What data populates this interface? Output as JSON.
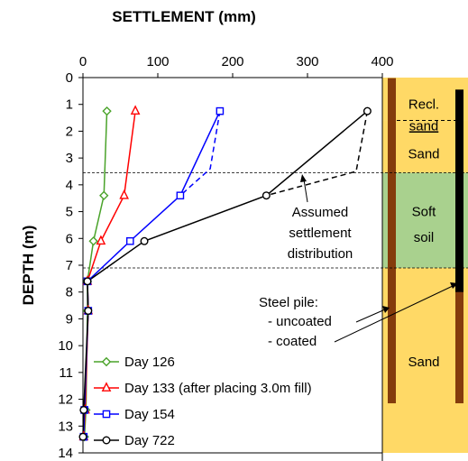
{
  "chart_data": {
    "type": "line",
    "title": "",
    "xlabel": "SETTLEMENT (mm)",
    "ylabel": "DEPTH (m)",
    "xlim": [
      0,
      400
    ],
    "ylim": [
      0,
      14
    ],
    "x_ticks": [
      "0",
      "100",
      "200",
      "300",
      "400"
    ],
    "y_ticks": [
      "0",
      "1",
      "2",
      "3",
      "4",
      "5",
      "6",
      "7",
      "8",
      "9",
      "10",
      "11",
      "12",
      "13",
      "14"
    ],
    "legend_position": "bottom-left",
    "series": [
      {
        "name": "Day 126",
        "color": "#4aa32a",
        "marker": "diamond",
        "points": [
          [
            32,
            1.25
          ],
          [
            28,
            4.4
          ],
          [
            14,
            6.1
          ],
          [
            6,
            7.6
          ],
          [
            6,
            8.7
          ],
          [
            4,
            12.4
          ],
          [
            2,
            13.4
          ]
        ]
      },
      {
        "name": "Day 133 (after placing 3.0m fill)",
        "color": "#ff0000",
        "marker": "triangle",
        "points": [
          [
            70,
            1.25
          ],
          [
            55,
            4.4
          ],
          [
            24,
            6.1
          ],
          [
            6,
            7.6
          ],
          [
            7,
            8.7
          ],
          [
            3,
            12.4
          ],
          [
            1,
            13.4
          ]
        ]
      },
      {
        "name": "Day 154",
        "color": "#0000ff",
        "marker": "square",
        "points": [
          [
            183,
            1.25
          ],
          [
            130,
            4.4
          ],
          [
            63,
            6.1
          ],
          [
            6,
            7.6
          ],
          [
            7,
            8.7
          ],
          [
            2,
            12.4
          ],
          [
            1,
            13.4
          ]
        ]
      },
      {
        "name": "Day 722",
        "color": "#000000",
        "marker": "circle",
        "points": [
          [
            380,
            1.25
          ],
          [
            245,
            4.4
          ],
          [
            82,
            6.1
          ],
          [
            6,
            7.6
          ],
          [
            7,
            8.7
          ],
          [
            1,
            12.4
          ],
          [
            0,
            13.4
          ]
        ]
      }
    ],
    "assumed_distributions": [
      {
        "color": "#0000ff",
        "points": [
          [
            183,
            1.25
          ],
          [
            170,
            3.4
          ],
          [
            130,
            4.4
          ]
        ]
      },
      {
        "color": "#000000",
        "points": [
          [
            380,
            1.25
          ],
          [
            365,
            3.5
          ],
          [
            245,
            4.4
          ]
        ]
      }
    ],
    "layer_boundaries": [
      3.55,
      7.1
    ],
    "annotations": {
      "assumed": [
        "Assumed",
        "settlement",
        "distribution"
      ],
      "steel_pile": [
        "Steel pile:",
        "- uncoated",
        "- coated"
      ]
    },
    "soil_layers": [
      {
        "label": [
          "Recl.",
          "sand"
        ],
        "top": 0,
        "bottom": 1.6,
        "color": "#ffd966"
      },
      {
        "label": [
          "Sand"
        ],
        "top": 1.6,
        "bottom": 3.55,
        "color": "#ffd966"
      },
      {
        "label": [
          "Soft",
          "soil"
        ],
        "top": 3.55,
        "bottom": 7.1,
        "color": "#a9d18e"
      },
      {
        "label": [
          "Sand"
        ],
        "top": 7.1,
        "bottom": 14,
        "color": "#ffd966"
      }
    ],
    "pile_colors": {
      "uncoated": "#843c0c",
      "coated": "#000000"
    },
    "pile_coated_depth_range": [
      0.1,
      8.0
    ]
  }
}
